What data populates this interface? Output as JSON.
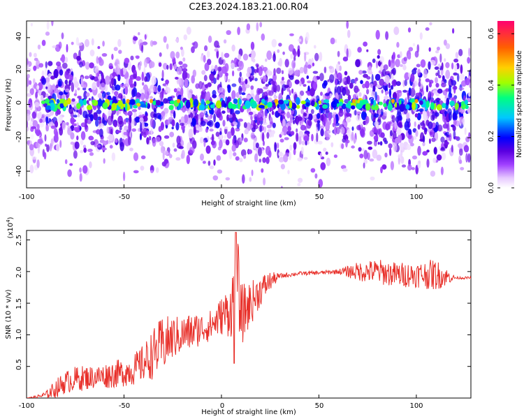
{
  "figure": {
    "title": "C2E3.2024.183.21.00.R04"
  },
  "chart_data": [
    {
      "type": "heatmap",
      "xlabel": "Height of straight line (km)",
      "ylabel": "Frequency (Hz)",
      "xlim": [
        -100,
        128
      ],
      "ylim": [
        -50,
        50
      ],
      "xticks": [
        "-100",
        "-50",
        "0",
        "50",
        "100"
      ],
      "yticks": [
        "-40",
        "-20",
        "0",
        "20",
        "40"
      ],
      "colorbar": {
        "label": "Normalized spectral amplitude",
        "range": [
          0,
          0.65
        ],
        "ticks": [
          "0.0",
          "0.2",
          "0.4",
          "0.6"
        ],
        "colors": [
          "#ffffff",
          "#e6c8ff",
          "#a040ff",
          "#5a00e0",
          "#0000ff",
          "#00c8ff",
          "#00ff80",
          "#a0ff00",
          "#ffd000",
          "#ff6000",
          "#ff0070"
        ]
      },
      "description_values": {
        "background_amplitude": 0.08,
        "center_band_frequency_hz": 0,
        "center_band_amplitude_range": [
          0.15,
          0.45
        ],
        "peak_amplitude": 0.65
      }
    },
    {
      "type": "line",
      "xlabel": "Height of straight line (km)",
      "ylabel": "SNR (10 * v/v)",
      "scale_label": "(x10",
      "scale_exponent": "4",
      "xlim": [
        -100,
        128
      ],
      "ylim": [
        0,
        2.65
      ],
      "xticks": [
        "-100",
        "-50",
        "0",
        "50",
        "100"
      ],
      "yticks": [
        "0.5",
        "1.0",
        "1.5",
        "2.0",
        "2.5"
      ],
      "series": [
        {
          "color": "#e8302a",
          "x": [
            -100,
            -95,
            -90,
            -85,
            -80,
            -75,
            -70,
            -65,
            -60,
            -55,
            -50,
            -45,
            -40,
            -35,
            -30,
            -25,
            -20,
            -15,
            -10,
            -5,
            0,
            5,
            8,
            10,
            15,
            20,
            25,
            30,
            40,
            50,
            60,
            70,
            80,
            90,
            100,
            110,
            115,
            120,
            128
          ],
          "y": [
            0.0,
            0.02,
            0.05,
            0.15,
            0.25,
            0.3,
            0.32,
            0.33,
            0.35,
            0.38,
            0.4,
            0.45,
            0.55,
            0.7,
            0.85,
            0.95,
            1.0,
            1.05,
            1.1,
            1.15,
            1.3,
            1.4,
            2.0,
            1.3,
            1.5,
            1.7,
            1.85,
            1.93,
            1.97,
            1.98,
            2.0,
            2.0,
            2.0,
            1.95,
            1.95,
            1.95,
            1.92,
            1.9,
            1.9
          ],
          "noise_amplitude": [
            0.0,
            0.02,
            0.06,
            0.15,
            0.18,
            0.2,
            0.2,
            0.18,
            0.2,
            0.22,
            0.22,
            0.25,
            0.3,
            0.4,
            0.45,
            0.35,
            0.3,
            0.3,
            0.25,
            0.25,
            0.3,
            0.45,
            0.7,
            0.5,
            0.35,
            0.25,
            0.15,
            0.04,
            0.03,
            0.03,
            0.04,
            0.15,
            0.2,
            0.2,
            0.2,
            0.25,
            0.15,
            0.02,
            0.02
          ]
        }
      ]
    }
  ]
}
